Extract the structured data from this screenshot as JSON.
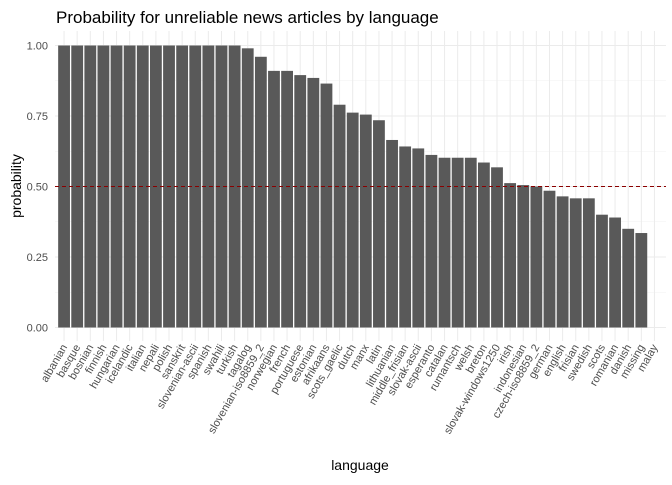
{
  "chart_data": {
    "type": "bar",
    "title": "Probability for unreliable news articles by language",
    "xlabel": "language",
    "ylabel": "probability",
    "ylim": [
      0,
      1.05
    ],
    "yticks": [
      0.0,
      0.25,
      0.5,
      0.75,
      1.0
    ],
    "ytick_labels": [
      "0.00",
      "0.25",
      "0.50",
      "0.75",
      "1.00"
    ],
    "reference_line": {
      "y": 0.5,
      "color": "#8b0000",
      "style": "dashed"
    },
    "bar_color": "#595959",
    "grid": true,
    "categories": [
      "albanian",
      "basque",
      "bosnian",
      "finnish",
      "hungarian",
      "icelandic",
      "italian",
      "nepali",
      "polish",
      "sanskrit",
      "slovenian-ascii",
      "spanish",
      "swahili",
      "turkish",
      "tagalog",
      "slovenian-iso8859_2",
      "norwegian",
      "french",
      "portuguese",
      "estonian",
      "afrikaans",
      "scots_gaelic",
      "dutch",
      "manx",
      "latin",
      "lithuanian",
      "middle_frisian",
      "slovak-ascii",
      "esperanto",
      "catalan",
      "rumantsch",
      "welsh",
      "breton",
      "slovak-windows1250",
      "irish",
      "indonesian",
      "czech-iso8859_2",
      "german",
      "english",
      "frisian",
      "swedish",
      "scots",
      "romanian",
      "danish",
      "missing",
      "malay"
    ],
    "values": [
      1.0,
      1.0,
      1.0,
      1.0,
      1.0,
      1.0,
      1.0,
      1.0,
      1.0,
      1.0,
      1.0,
      1.0,
      1.0,
      1.0,
      0.99,
      0.96,
      0.91,
      0.91,
      0.895,
      0.885,
      0.865,
      0.79,
      0.762,
      0.755,
      0.735,
      0.665,
      0.642,
      0.635,
      0.612,
      0.602,
      0.602,
      0.602,
      0.585,
      0.568,
      0.512,
      0.505,
      0.5,
      0.485,
      0.465,
      0.458,
      0.458,
      0.4,
      0.39,
      0.35,
      0.335,
      0.0
    ]
  }
}
